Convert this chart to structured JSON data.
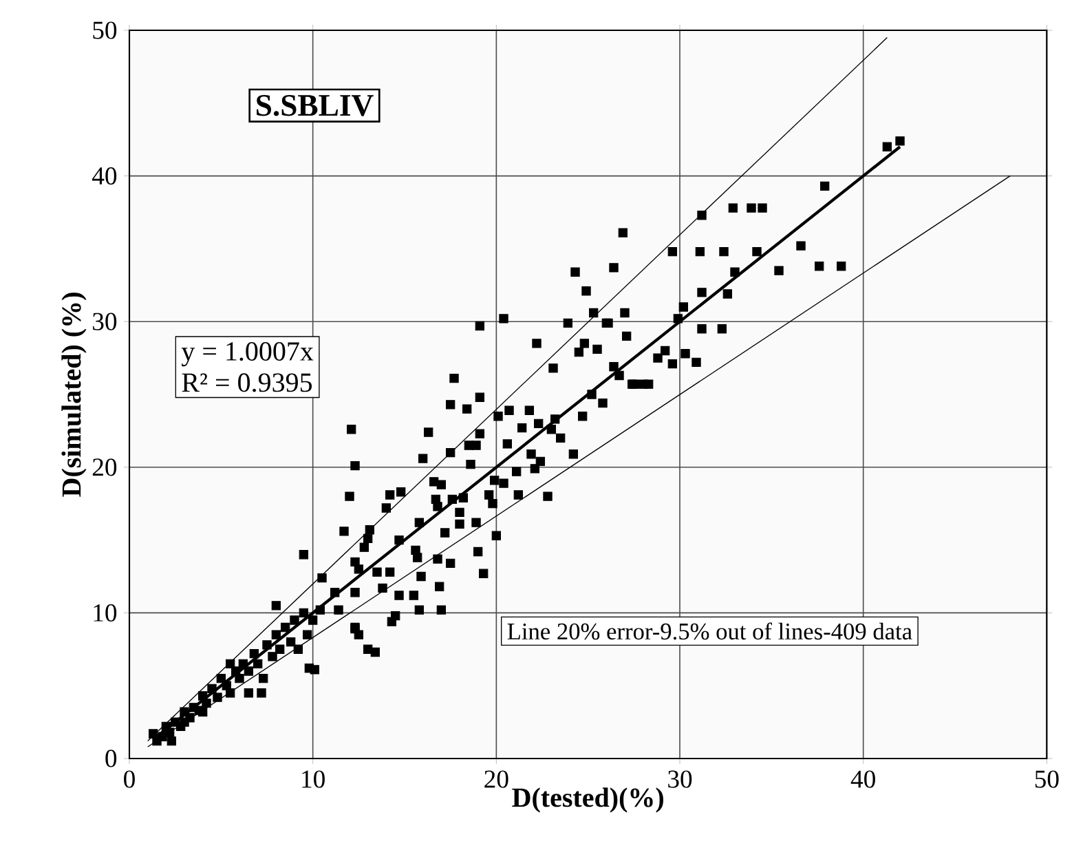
{
  "chart_data": {
    "type": "scatter",
    "xlabel": "D(tested)(%)",
    "ylabel": "D(simulated) (%)",
    "xlim": [
      0,
      50
    ],
    "ylim": [
      0,
      50
    ],
    "xticks": [
      0,
      10,
      20,
      30,
      40,
      50
    ],
    "yticks": [
      0,
      10,
      20,
      30,
      40,
      50
    ],
    "grid": true,
    "marker": "square",
    "annotations": [
      "S.SBLIV",
      "y = 1.0007x",
      "R² = 0.9395",
      "Line 20% error-9.5% out of lines-409 data"
    ],
    "series": [
      {
        "color": "#000000",
        "x": [
          1.3,
          1.5,
          1.8,
          2,
          2.2,
          2.5,
          2.8,
          3,
          3.3,
          3.5,
          3.8,
          4,
          4.2,
          4.5,
          4.8,
          5,
          5.3,
          5.5,
          5.8,
          6,
          6.2,
          6.5,
          6.8,
          7,
          7.3,
          7.5,
          7.8,
          8,
          8.2,
          8.5,
          8.8,
          9,
          9.2,
          9.5,
          9.7,
          9.8,
          10,
          4,
          6.5,
          7.2,
          8,
          9.5,
          5.5,
          3,
          2.3,
          12.1,
          12.3,
          12.0,
          11.7,
          10.1,
          12.3,
          12.5,
          13,
          13.4,
          12.3,
          26.9,
          26.4,
          24.3,
          24.9,
          25.3,
          27.0,
          20.4,
          19.1,
          23.9,
          26.1,
          27.1,
          22.2,
          24.8,
          24.5,
          25.5,
          23.1,
          26.4,
          26.7,
          27.5,
          28.0,
          17.7,
          25.2,
          25.8,
          17.5,
          18.4,
          19.1,
          20.1,
          20.7,
          21.8,
          23.2,
          24.7,
          22.3,
          21.4,
          16.3,
          19.1,
          23.0,
          23.5,
          18.5,
          18.9,
          20.6,
          17.5,
          16.0,
          18.6,
          21.9,
          24.2,
          22.4,
          22.1,
          19.9,
          21.1,
          20.4,
          16.6,
          17.0,
          18.2,
          19.6,
          19.8,
          21.2,
          22.8,
          14.2,
          14.8,
          14.0,
          15.8,
          16.7,
          16.8,
          17.6,
          18.0,
          18.0,
          18.9,
          17.2,
          20.0,
          13.1,
          14.7,
          13.0,
          12.8,
          15.6,
          15.7,
          19.0,
          16.8,
          17.5,
          19.3,
          12.3,
          13.5,
          14.2,
          15.9,
          13.8,
          14.7,
          15.5,
          16.9,
          15.8,
          17.0,
          14.5,
          14.3,
          10.5,
          11.2,
          12.3,
          11.4,
          10.4,
          12.5,
          42.0,
          41.3,
          37.9,
          31.2,
          32.9,
          33.9,
          34.5,
          29.6,
          31.1,
          32.4,
          34.2,
          36.6,
          35.4,
          37.6,
          38.8,
          33.0,
          31.2,
          32.6,
          30.2,
          29.9,
          26.0,
          31.2,
          32.3,
          29.2,
          28.8,
          29.6,
          30.3,
          30.9,
          27.4,
          28.3
        ],
        "values": [
          1.7,
          1.2,
          1.5,
          2.2,
          1.8,
          2.5,
          2.2,
          3.2,
          2.8,
          3.5,
          3.3,
          4.3,
          3.8,
          4.8,
          4.2,
          5.5,
          5,
          4.5,
          6,
          5.5,
          6.5,
          6,
          7.2,
          6.5,
          5.5,
          7.8,
          7,
          8.5,
          7.5,
          9,
          8,
          9.5,
          7.5,
          10,
          8.5,
          6.2,
          9.5,
          3.2,
          4.5,
          4.5,
          10.5,
          14,
          6.5,
          2.5,
          1.2,
          22.6,
          20.1,
          18.0,
          15.6,
          6.1,
          8.9,
          8.5,
          7.5,
          7.3,
          9.0,
          36.1,
          33.7,
          33.4,
          32.1,
          30.6,
          30.6,
          30.2,
          29.7,
          29.9,
          29.9,
          29.0,
          28.5,
          28.5,
          27.9,
          28.1,
          26.8,
          26.9,
          26.3,
          25.7,
          25.7,
          26.1,
          25.0,
          24.4,
          24.3,
          24.0,
          24.8,
          23.5,
          23.9,
          23.9,
          23.3,
          23.5,
          23.0,
          22.7,
          22.4,
          22.3,
          22.6,
          22.0,
          21.5,
          21.5,
          21.6,
          21.0,
          20.6,
          20.2,
          20.9,
          20.9,
          20.4,
          19.9,
          19.1,
          19.7,
          18.9,
          19.0,
          18.8,
          17.9,
          18.1,
          17.5,
          18.1,
          18.0,
          18.1,
          18.3,
          17.2,
          16.2,
          17.8,
          17.3,
          17.8,
          16.9,
          16.1,
          16.2,
          15.5,
          15.3,
          15.7,
          15.0,
          15.1,
          14.5,
          14.3,
          13.8,
          14.2,
          13.7,
          13.4,
          12.7,
          13.5,
          12.8,
          12.8,
          12.5,
          11.7,
          11.2,
          11.2,
          11.8,
          10.2,
          10.2,
          9.8,
          9.4,
          12.4,
          11.4,
          11.4,
          10.2,
          10.2,
          13.0,
          42.4,
          42.0,
          39.3,
          37.3,
          37.8,
          37.8,
          37.8,
          34.8,
          34.8,
          34.8,
          34.8,
          35.2,
          33.5,
          33.8,
          33.8,
          33.4,
          32.0,
          31.9,
          31.0,
          30.2,
          29.9,
          29.5,
          29.5,
          28.0,
          27.5,
          27.1,
          27.8,
          27.2,
          25.7,
          25.7
        ]
      },
      {
        "type": "line",
        "color": "#000000",
        "marker": "none",
        "x": [
          1.3,
          42
        ],
        "values": [
          1.3,
          42.0
        ]
      },
      {
        "type": "line",
        "color": "#000000",
        "marker": "none",
        "x": [
          1,
          41.3
        ],
        "values": [
          1.2,
          49.5
        ]
      },
      {
        "type": "line",
        "color": "#000000",
        "marker": "none",
        "x": [
          1,
          48
        ],
        "values": [
          0.8,
          40.0
        ]
      }
    ]
  }
}
